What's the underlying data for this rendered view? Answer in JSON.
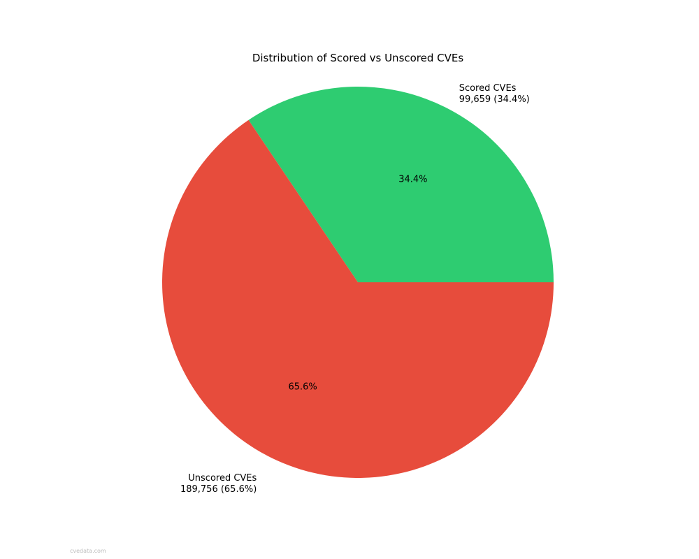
{
  "chart_data": {
    "type": "pie",
    "title": "Distribution of Scored vs Unscored CVEs",
    "start_angle_deg": 0,
    "direction": "counterclockwise",
    "slices": [
      {
        "name": "Scored CVEs",
        "value": 99659,
        "pct_label": "34.4%",
        "label_line1": "Scored CVEs",
        "label_line2": "99,659 (34.4%)",
        "color": "#2ecc71"
      },
      {
        "name": "Unscored CVEs",
        "value": 189756,
        "pct_label": "65.6%",
        "label_line1": "Unscored CVEs",
        "label_line2": "189,756 (65.6%)",
        "color": "#e74c3c"
      }
    ]
  },
  "watermark": "cvedata.com"
}
